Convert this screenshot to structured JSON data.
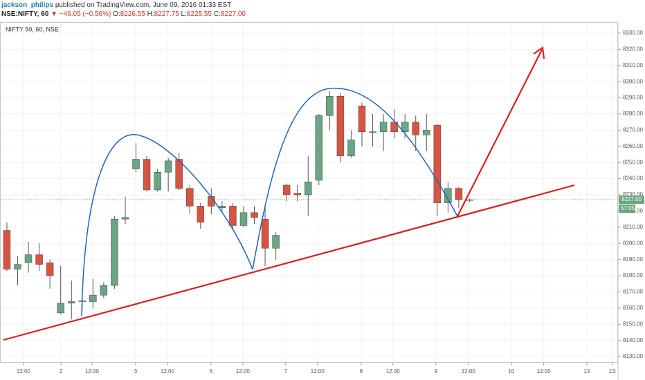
{
  "header": {
    "author": "jackson_philips",
    "published": "published on TradingView.com, June 09, 2016 01:33 EST",
    "symbol": "NSE:NIFTY, 60",
    "change": "▼ −46.05 (−0.56%)",
    "ohlc": [
      {
        "label": "O:",
        "value": "8226.55"
      },
      {
        "label": "H:",
        "value": "8227.75"
      },
      {
        "label": "L:",
        "value": "8225.55"
      },
      {
        "label": "C:",
        "value": "8227.00"
      }
    ]
  },
  "chart_data": {
    "type": "candlestick",
    "title": "NIFTY 50, 60, NSE",
    "categories": [
      null,
      null,
      null,
      null,
      null,
      null,
      null,
      null,
      null,
      null,
      null,
      null,
      null,
      null,
      null,
      null,
      null,
      null,
      null,
      null,
      null,
      null,
      null,
      null,
      null,
      null,
      null,
      null,
      null,
      null,
      null,
      null,
      null,
      null,
      null,
      null,
      null,
      null,
      null,
      null,
      null,
      null,
      null,
      null
    ],
    "open": [
      8208,
      8184,
      8188,
      8193,
      8188,
      8157,
      8163,
      8164,
      8164,
      8168,
      8174,
      8215,
      8246,
      8252,
      8233,
      8244,
      8252,
      8234,
      8223,
      8229,
      8222,
      8223,
      8211,
      8219,
      8215,
      8197,
      8236,
      8231,
      8230,
      8239,
      8279,
      8291,
      8254,
      8285,
      8269,
      8269,
      8275,
      8269,
      8275,
      8267,
      8273,
      8225,
      8234,
      8226.55
    ],
    "high": [
      8213,
      8192,
      8201,
      8200,
      8190,
      8186,
      8177,
      8166,
      8178,
      8176,
      8217,
      8229,
      8262,
      8254,
      8246,
      8253,
      8256,
      8236,
      8225,
      8234,
      8226,
      8225,
      8223,
      8223,
      8223,
      8207,
      8237,
      8236,
      8254,
      8280,
      8294,
      8293,
      8270,
      8287,
      8280,
      8280,
      8283,
      8280,
      8279,
      8280,
      8274,
      8238,
      8235,
      8227.75
    ],
    "low": [
      8183,
      8174,
      8182,
      8183,
      8172,
      8156,
      8153,
      8158,
      8160,
      8166,
      8172,
      8212,
      8244,
      8232,
      8232,
      8232,
      8233,
      8218,
      8209,
      8218,
      8220,
      8209,
      8210,
      8212,
      8186,
      8190,
      8226,
      8226,
      8217,
      8236,
      8270,
      8250,
      8253,
      8260,
      8260,
      8257,
      8265,
      8265,
      8257,
      8257,
      8217,
      8219,
      8222,
      8225.55
    ],
    "close": [
      8184,
      8187,
      8193,
      8187,
      8180,
      8163,
      8164,
      8164.5,
      8168,
      8174,
      8215,
      8216,
      8252,
      8233,
      8244,
      8251,
      8234,
      8223,
      8213,
      8223,
      8223,
      8211,
      8219,
      8216,
      8197,
      8205,
      8230,
      8230,
      8238,
      8279,
      8291,
      8254,
      8264,
      8269,
      8269,
      8275,
      8269,
      8275,
      8267,
      8270,
      8225,
      8234,
      8227,
      8227
    ],
    "up_color": "#6ba583",
    "down_color": "#d75442",
    "xlim": [
      -0.64,
      56.8
    ],
    "xticks": [
      {
        "value": 1.54,
        "label": "12:00"
      },
      {
        "value": 5.02,
        "label": "2"
      },
      {
        "value": 7.91,
        "label": "12:00"
      },
      {
        "value": 11.96,
        "label": "3"
      },
      {
        "value": 14.92,
        "label": "12:00"
      },
      {
        "value": 18.97,
        "label": "6"
      },
      {
        "value": 21.93,
        "label": "12:00"
      },
      {
        "value": 25.92,
        "label": "7"
      },
      {
        "value": 28.87,
        "label": "12:00"
      },
      {
        "value": 32.93,
        "label": "8"
      },
      {
        "value": 35.88,
        "label": "12:00"
      },
      {
        "value": 39.87,
        "label": "9"
      },
      {
        "value": 42.89,
        "label": "12:00"
      },
      {
        "value": 46.88,
        "label": "10"
      },
      {
        "value": 49.9,
        "label": "12:00"
      },
      {
        "value": 53.9,
        "label": "13"
      },
      {
        "value": 56.3,
        "label": "12:"
      }
    ],
    "ylim": [
      8126.2,
      8336.8
    ],
    "yticks": [
      {
        "value": 8130,
        "label": "8130.00"
      },
      {
        "value": 8140,
        "label": "8140.00"
      },
      {
        "value": 8150,
        "label": "8150.00"
      },
      {
        "value": 8160,
        "label": "8160.00"
      },
      {
        "value": 8170,
        "label": "8170.00"
      },
      {
        "value": 8180,
        "label": "8180.00"
      },
      {
        "value": 8190,
        "label": "8190.00"
      },
      {
        "value": 8200,
        "label": "8200.00"
      },
      {
        "value": 8210,
        "label": "8210.00"
      },
      {
        "value": 8220,
        "label": "8220.00"
      },
      {
        "value": 8230,
        "label": "8230.00"
      },
      {
        "value": 8240,
        "label": "8240.00"
      },
      {
        "value": 8250,
        "label": "8250.00"
      },
      {
        "value": 8260,
        "label": "8260.00"
      },
      {
        "value": 8270,
        "label": "8270.00"
      },
      {
        "value": 8280,
        "label": "8280.00"
      },
      {
        "value": 8290,
        "label": "8290.00"
      },
      {
        "value": 8300,
        "label": "8300.00"
      },
      {
        "value": 8310,
        "label": "8310.00"
      },
      {
        "value": 8320,
        "label": "8320.00"
      },
      {
        "value": 8330,
        "label": "8330.00"
      }
    ],
    "grid": true,
    "last_price": {
      "value": 8227,
      "label": "8227.00"
    },
    "countdown": "57:05"
  }
}
